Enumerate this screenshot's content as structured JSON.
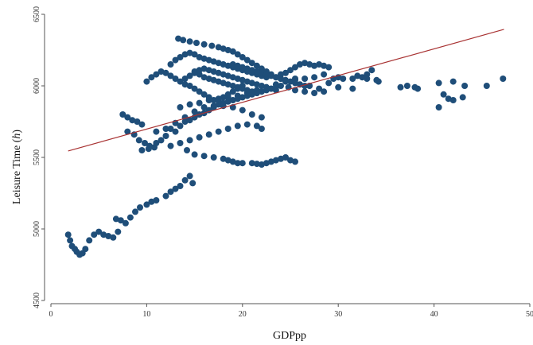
{
  "chart_data": {
    "type": "scatter",
    "title": "",
    "xlabel": "GDPpp",
    "ylabel_main": "Leisure Time (",
    "ylabel_unit": "h",
    "ylabel_close": ")",
    "xlim": [
      0,
      50
    ],
    "ylim": [
      4500,
      6500
    ],
    "xticks": [
      0,
      10,
      20,
      30,
      40,
      50
    ],
    "yticks": [
      4500,
      5000,
      5500,
      6000,
      6500
    ],
    "grid": false,
    "colors": {
      "points": "#1f4e79",
      "fit_line": "#a83232",
      "axis": "#555555"
    },
    "fit_line": {
      "x": [
        1.8,
        47.3
      ],
      "y": [
        5545,
        6395
      ]
    },
    "series": [
      {
        "points": [
          [
            1.8,
            4960
          ],
          [
            2.0,
            4920
          ],
          [
            2.2,
            4880
          ],
          [
            2.5,
            4860
          ],
          [
            2.7,
            4840
          ],
          [
            3.0,
            4820
          ],
          [
            3.3,
            4830
          ],
          [
            3.6,
            4860
          ],
          [
            4.0,
            4920
          ],
          [
            4.5,
            4960
          ],
          [
            5.0,
            4980
          ],
          [
            5.5,
            4960
          ],
          [
            6.0,
            4950
          ],
          [
            6.5,
            4940
          ],
          [
            7.0,
            4980
          ],
          [
            6.8,
            5070
          ],
          [
            7.3,
            5060
          ],
          [
            7.8,
            5040
          ],
          [
            8.3,
            5080
          ],
          [
            8.8,
            5120
          ],
          [
            9.3,
            5150
          ],
          [
            10.0,
            5170
          ],
          [
            10.5,
            5190
          ],
          [
            11.0,
            5200
          ],
          [
            12.0,
            5230
          ],
          [
            12.5,
            5260
          ],
          [
            13.0,
            5280
          ],
          [
            13.5,
            5300
          ],
          [
            14.0,
            5340
          ],
          [
            14.5,
            5370
          ],
          [
            14.8,
            5320
          ],
          [
            14.2,
            5550
          ],
          [
            15.0,
            5520
          ],
          [
            16.0,
            5510
          ],
          [
            17.0,
            5500
          ],
          [
            18.0,
            5490
          ],
          [
            18.5,
            5480
          ],
          [
            19.0,
            5470
          ],
          [
            19.5,
            5460
          ],
          [
            20.0,
            5460
          ],
          [
            21.0,
            5460
          ],
          [
            21.5,
            5455
          ],
          [
            22.0,
            5450
          ],
          [
            22.5,
            5460
          ],
          [
            23.0,
            5470
          ],
          [
            23.5,
            5480
          ],
          [
            24.0,
            5490
          ],
          [
            24.5,
            5500
          ],
          [
            25.0,
            5480
          ],
          [
            25.5,
            5470
          ],
          [
            7.5,
            5800
          ],
          [
            8.0,
            5780
          ],
          [
            8.5,
            5760
          ],
          [
            9.0,
            5750
          ],
          [
            9.5,
            5730
          ],
          [
            8.0,
            5680
          ],
          [
            8.7,
            5660
          ],
          [
            9.2,
            5620
          ],
          [
            9.8,
            5600
          ],
          [
            10.3,
            5580
          ],
          [
            10.8,
            5570
          ],
          [
            9.5,
            5550
          ],
          [
            10.2,
            5560
          ],
          [
            11.0,
            5600
          ],
          [
            11.5,
            5620
          ],
          [
            12.0,
            5650
          ],
          [
            12.5,
            5700
          ],
          [
            13.0,
            5680
          ],
          [
            13.5,
            5720
          ],
          [
            14.0,
            5750
          ],
          [
            14.5,
            5760
          ],
          [
            15.0,
            5780
          ],
          [
            15.5,
            5800
          ],
          [
            16.0,
            5810
          ],
          [
            16.5,
            5830
          ],
          [
            17.0,
            5850
          ],
          [
            17.5,
            5870
          ],
          [
            18.0,
            5880
          ],
          [
            18.5,
            5890
          ],
          [
            19.0,
            5900
          ],
          [
            19.5,
            5910
          ],
          [
            20.0,
            5920
          ],
          [
            20.5,
            5930
          ],
          [
            21.0,
            5940
          ],
          [
            21.5,
            5950
          ],
          [
            22.0,
            5960
          ],
          [
            22.5,
            5970
          ],
          [
            23.0,
            5980
          ],
          [
            23.5,
            5990
          ],
          [
            24.0,
            6000
          ],
          [
            11.0,
            5680
          ],
          [
            12.0,
            5700
          ],
          [
            13.0,
            5740
          ],
          [
            14.0,
            5780
          ],
          [
            15.0,
            5820
          ],
          [
            16.0,
            5850
          ],
          [
            17.0,
            5860
          ],
          [
            18.0,
            5860
          ],
          [
            19.0,
            5850
          ],
          [
            20.0,
            5830
          ],
          [
            21.0,
            5800
          ],
          [
            22.0,
            5780
          ],
          [
            13.5,
            5850
          ],
          [
            14.5,
            5870
          ],
          [
            15.5,
            5880
          ],
          [
            16.5,
            5900
          ],
          [
            17.5,
            5910
          ],
          [
            18.5,
            5920
          ],
          [
            19.5,
            5930
          ],
          [
            20.5,
            5950
          ],
          [
            21.5,
            5970
          ],
          [
            22.5,
            5990
          ],
          [
            23.5,
            6010
          ],
          [
            24.5,
            6030
          ],
          [
            25.5,
            6050
          ],
          [
            12.5,
            5580
          ],
          [
            13.5,
            5600
          ],
          [
            14.5,
            5620
          ],
          [
            15.5,
            5640
          ],
          [
            16.5,
            5660
          ],
          [
            17.5,
            5680
          ],
          [
            18.5,
            5700
          ],
          [
            19.5,
            5720
          ],
          [
            20.5,
            5730
          ],
          [
            21.5,
            5720
          ],
          [
            22.0,
            5700
          ],
          [
            10.0,
            6030
          ],
          [
            10.5,
            6060
          ],
          [
            11.0,
            6080
          ],
          [
            11.5,
            6100
          ],
          [
            12.0,
            6090
          ],
          [
            12.5,
            6070
          ],
          [
            13.0,
            6050
          ],
          [
            13.5,
            6030
          ],
          [
            14.0,
            6010
          ],
          [
            14.5,
            6000
          ],
          [
            15.0,
            5980
          ],
          [
            15.5,
            5960
          ],
          [
            16.0,
            5940
          ],
          [
            16.5,
            5920
          ],
          [
            17.0,
            5900
          ],
          [
            17.5,
            5900
          ],
          [
            18.0,
            5920
          ],
          [
            18.5,
            5940
          ],
          [
            19.0,
            5960
          ],
          [
            19.5,
            5980
          ],
          [
            20.0,
            6000
          ],
          [
            12.5,
            6150
          ],
          [
            13.0,
            6180
          ],
          [
            13.5,
            6200
          ],
          [
            14.0,
            6220
          ],
          [
            14.5,
            6230
          ],
          [
            15.0,
            6220
          ],
          [
            15.5,
            6200
          ],
          [
            16.0,
            6190
          ],
          [
            16.5,
            6180
          ],
          [
            17.0,
            6170
          ],
          [
            17.5,
            6160
          ],
          [
            18.0,
            6150
          ],
          [
            18.5,
            6140
          ],
          [
            19.0,
            6130
          ],
          [
            19.5,
            6120
          ],
          [
            20.0,
            6110
          ],
          [
            20.5,
            6100
          ],
          [
            21.0,
            6090
          ],
          [
            21.5,
            6080
          ],
          [
            22.0,
            6070
          ],
          [
            22.5,
            6060
          ],
          [
            13.3,
            6330
          ],
          [
            13.8,
            6320
          ],
          [
            14.5,
            6310
          ],
          [
            15.2,
            6300
          ],
          [
            16.0,
            6290
          ],
          [
            16.8,
            6280
          ],
          [
            17.5,
            6270
          ],
          [
            18.0,
            6260
          ],
          [
            18.5,
            6250
          ],
          [
            19.0,
            6240
          ],
          [
            19.5,
            6220
          ],
          [
            20.0,
            6200
          ],
          [
            20.5,
            6180
          ],
          [
            21.0,
            6160
          ],
          [
            21.5,
            6140
          ],
          [
            22.0,
            6120
          ],
          [
            22.5,
            6100
          ],
          [
            23.0,
            6080
          ],
          [
            23.5,
            6060
          ],
          [
            24.0,
            6050
          ],
          [
            15.0,
            6100
          ],
          [
            15.5,
            6080
          ],
          [
            16.0,
            6060
          ],
          [
            16.5,
            6050
          ],
          [
            17.0,
            6040
          ],
          [
            17.5,
            6030
          ],
          [
            18.0,
            6020
          ],
          [
            18.5,
            6010
          ],
          [
            19.0,
            6000
          ],
          [
            19.5,
            5990
          ],
          [
            20.0,
            5980
          ],
          [
            20.5,
            5970
          ],
          [
            21.0,
            5960
          ],
          [
            21.5,
            5950
          ],
          [
            14.0,
            6050
          ],
          [
            14.5,
            6070
          ],
          [
            15.0,
            6090
          ],
          [
            15.5,
            6110
          ],
          [
            16.0,
            6120
          ],
          [
            16.5,
            6110
          ],
          [
            17.0,
            6100
          ],
          [
            17.5,
            6090
          ],
          [
            18.0,
            6080
          ],
          [
            18.5,
            6070
          ],
          [
            19.0,
            6060
          ],
          [
            19.5,
            6050
          ],
          [
            20.0,
            6040
          ],
          [
            20.5,
            6030
          ],
          [
            21.0,
            6020
          ],
          [
            21.5,
            6010
          ],
          [
            22.0,
            6000
          ],
          [
            22.5,
            5990
          ],
          [
            23.0,
            5980
          ],
          [
            23.5,
            5970
          ],
          [
            19.0,
            6150
          ],
          [
            19.5,
            6140
          ],
          [
            20.0,
            6130
          ],
          [
            20.5,
            6120
          ],
          [
            21.0,
            6110
          ],
          [
            21.5,
            6100
          ],
          [
            22.0,
            6090
          ],
          [
            22.5,
            6080
          ],
          [
            23.0,
            6070
          ],
          [
            23.5,
            6060
          ],
          [
            24.0,
            6050
          ],
          [
            24.5,
            6040
          ],
          [
            25.0,
            6030
          ],
          [
            25.5,
            6020
          ],
          [
            26.0,
            6010
          ],
          [
            26.5,
            6000
          ],
          [
            27.0,
            6000
          ],
          [
            24.0,
            6080
          ],
          [
            24.5,
            6090
          ],
          [
            25.0,
            6110
          ],
          [
            25.5,
            6130
          ],
          [
            26.0,
            6150
          ],
          [
            26.5,
            6160
          ],
          [
            27.0,
            6150
          ],
          [
            27.5,
            6140
          ],
          [
            28.0,
            6150
          ],
          [
            28.5,
            6140
          ],
          [
            29.0,
            6130
          ],
          [
            28.5,
            6080
          ],
          [
            27.5,
            6060
          ],
          [
            26.5,
            6050
          ],
          [
            25.5,
            6040
          ],
          [
            24.8,
            5990
          ],
          [
            25.5,
            5970
          ],
          [
            26.5,
            5960
          ],
          [
            27.5,
            5950
          ],
          [
            28.5,
            5960
          ],
          [
            29.0,
            6020
          ],
          [
            29.5,
            6050
          ],
          [
            30.0,
            6060
          ],
          [
            30.5,
            6050
          ],
          [
            31.5,
            6050
          ],
          [
            32.0,
            6070
          ],
          [
            32.5,
            6060
          ],
          [
            33.0,
            6080
          ],
          [
            33.5,
            6110
          ],
          [
            33.0,
            6050
          ],
          [
            34.0,
            6040
          ],
          [
            34.2,
            6030
          ],
          [
            28.0,
            5980
          ],
          [
            30.0,
            5990
          ],
          [
            31.5,
            5980
          ],
          [
            36.5,
            5990
          ],
          [
            37.2,
            6000
          ],
          [
            38.0,
            5990
          ],
          [
            38.3,
            5980
          ],
          [
            40.5,
            6020
          ],
          [
            40.5,
            5850
          ],
          [
            41.0,
            5940
          ],
          [
            41.5,
            5910
          ],
          [
            42.0,
            5900
          ],
          [
            42.0,
            6030
          ],
          [
            43.0,
            5920
          ],
          [
            43.2,
            6000
          ],
          [
            45.5,
            6000
          ],
          [
            47.2,
            6050
          ]
        ]
      }
    ]
  }
}
